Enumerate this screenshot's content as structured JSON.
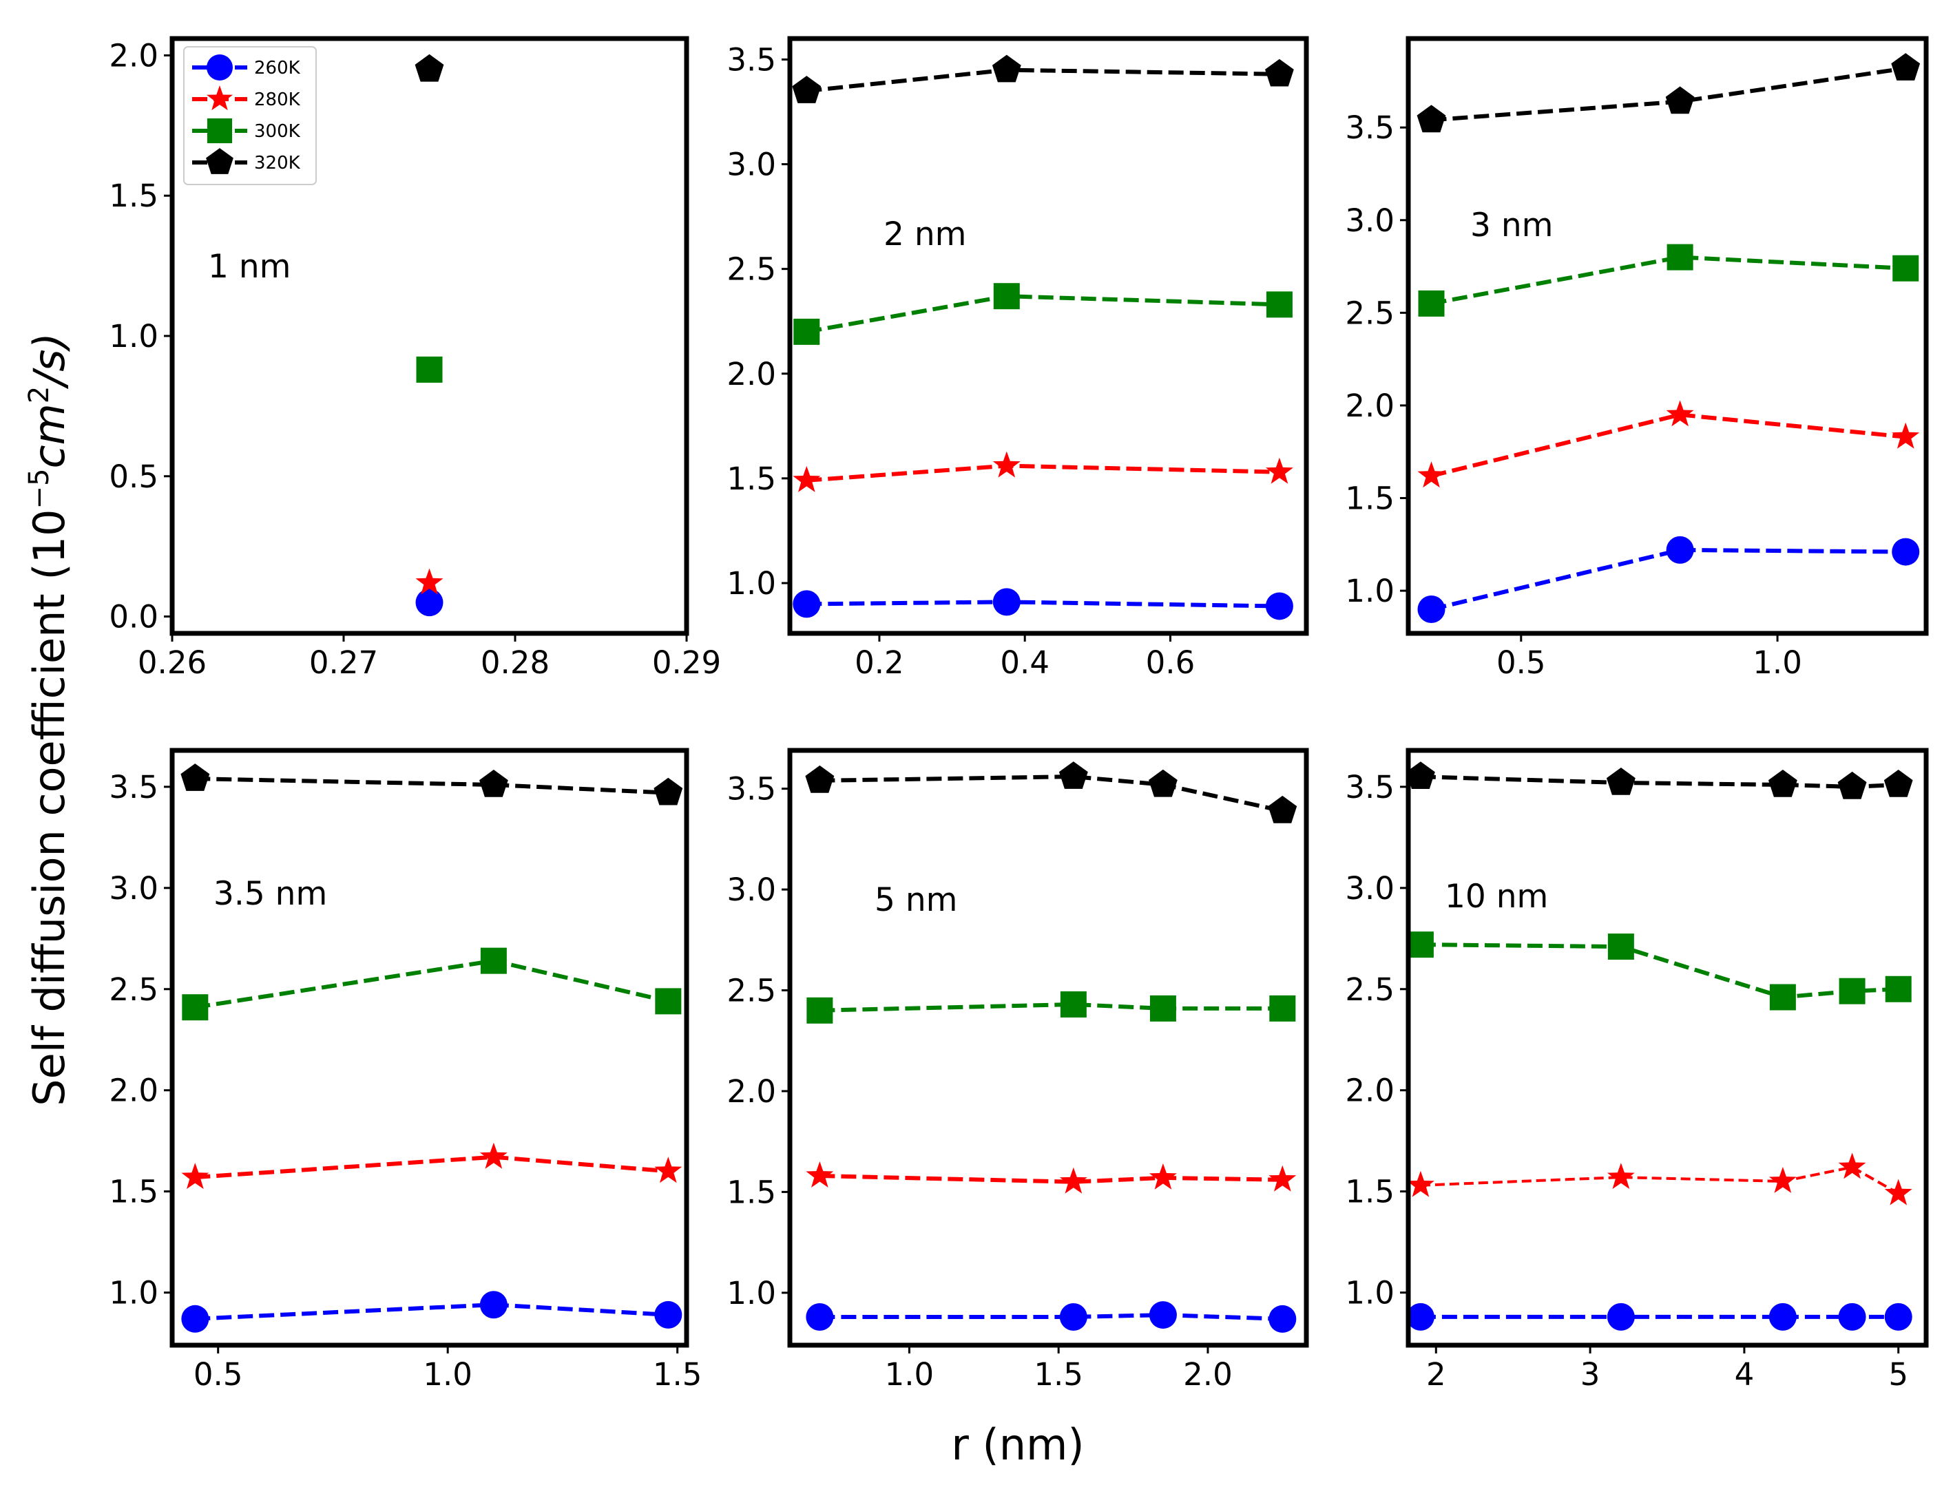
{
  "chart_data": {
    "type": "line",
    "ylabel": "Self diffusion coefficient (10",
    "ylabel_exponent": "−5",
    "ylabel_unit_base": "cm",
    "ylabel_unit_exponent": "2",
    "ylabel_unit_tail": "/s)",
    "xlabel": "r (nm)",
    "series_styles": [
      {
        "name": "260K",
        "color": "#0000ff",
        "marker": "circle"
      },
      {
        "name": "280K",
        "color": "#ff0000",
        "marker": "star"
      },
      {
        "name": "300K",
        "color": "#008000",
        "marker": "square"
      },
      {
        "name": "320K",
        "color": "#000000",
        "marker": "pentagon"
      }
    ],
    "panels": [
      {
        "label": "1 nm",
        "xlim": [
          0.26,
          0.29
        ],
        "ylim": [
          -0.06,
          2.06
        ],
        "xticks": [
          0.26,
          0.27,
          0.28,
          0.29
        ],
        "xtick_labels": [
          "0.26",
          "0.27",
          "0.28",
          "0.29"
        ],
        "yticks": [
          0.0,
          0.5,
          1.0,
          1.5,
          2.0
        ],
        "ytick_labels": [
          "0.0",
          "0.5",
          "1.0",
          "1.5",
          "2.0"
        ],
        "legend": "top-left",
        "series": [
          {
            "name": "260K",
            "x": [
              0.275
            ],
            "y": [
              0.05
            ]
          },
          {
            "name": "280K",
            "x": [
              0.275
            ],
            "y": [
              0.12
            ]
          },
          {
            "name": "300K",
            "x": [
              0.275
            ],
            "y": [
              0.88
            ]
          },
          {
            "name": "320K",
            "x": [
              0.275
            ],
            "y": [
              1.95
            ]
          }
        ]
      },
      {
        "label": "2 nm",
        "xlim": [
          0.077,
          0.787
        ],
        "ylim": [
          0.76,
          3.6
        ],
        "xticks": [
          0.2,
          0.4,
          0.6
        ],
        "xtick_labels": [
          "0.2",
          "0.4",
          "0.6"
        ],
        "yticks": [
          1.0,
          1.5,
          2.0,
          2.5,
          3.0,
          3.5
        ],
        "ytick_labels": [
          "1.0",
          "1.5",
          "2.0",
          "2.5",
          "3.0",
          "3.5"
        ],
        "series": [
          {
            "name": "260K",
            "x": [
              0.1,
              0.375,
              0.75
            ],
            "y": [
              0.9,
              0.91,
              0.89
            ]
          },
          {
            "name": "280K",
            "x": [
              0.1,
              0.375,
              0.75
            ],
            "y": [
              1.49,
              1.56,
              1.53
            ]
          },
          {
            "name": "300K",
            "x": [
              0.1,
              0.375,
              0.75
            ],
            "y": [
              2.2,
              2.37,
              2.33
            ]
          },
          {
            "name": "320K",
            "x": [
              0.1,
              0.375,
              0.75
            ],
            "y": [
              3.35,
              3.45,
              3.43
            ]
          }
        ]
      },
      {
        "label": "3 nm",
        "xlim": [
          0.28,
          1.29
        ],
        "ylim": [
          0.77,
          3.98
        ],
        "xticks": [
          0.5,
          1.0
        ],
        "xtick_labels": [
          "0.5",
          "1.0"
        ],
        "yticks": [
          1.0,
          1.5,
          2.0,
          2.5,
          3.0,
          3.5
        ],
        "ytick_labels": [
          "1.0",
          "1.5",
          "2.0",
          "2.5",
          "3.0",
          "3.5"
        ],
        "series": [
          {
            "name": "260K",
            "x": [
              0.325,
              0.81,
              1.25
            ],
            "y": [
              0.9,
              1.22,
              1.21
            ]
          },
          {
            "name": "280K",
            "x": [
              0.325,
              0.81,
              1.25
            ],
            "y": [
              1.62,
              1.95,
              1.83
            ]
          },
          {
            "name": "300K",
            "x": [
              0.325,
              0.81,
              1.25
            ],
            "y": [
              2.55,
              2.8,
              2.74
            ]
          },
          {
            "name": "320K",
            "x": [
              0.325,
              0.81,
              1.25
            ],
            "y": [
              3.54,
              3.64,
              3.82
            ]
          }
        ]
      },
      {
        "label": "3.5 nm",
        "xlim": [
          0.4,
          1.52
        ],
        "ylim": [
          0.74,
          3.68
        ],
        "xticks": [
          0.5,
          1.0,
          1.5
        ],
        "xtick_labels": [
          "0.5",
          "1.0",
          "1.5"
        ],
        "yticks": [
          1.0,
          1.5,
          2.0,
          2.5,
          3.0,
          3.5
        ],
        "ytick_labels": [
          "1.0",
          "1.5",
          "2.0",
          "2.5",
          "3.0",
          "3.5"
        ],
        "series": [
          {
            "name": "260K",
            "x": [
              0.45,
              1.1,
              1.48
            ],
            "y": [
              0.87,
              0.94,
              0.89
            ]
          },
          {
            "name": "280K",
            "x": [
              0.45,
              1.1,
              1.48
            ],
            "y": [
              1.57,
              1.67,
              1.6
            ]
          },
          {
            "name": "300K",
            "x": [
              0.45,
              1.1,
              1.48
            ],
            "y": [
              2.41,
              2.64,
              2.44
            ]
          },
          {
            "name": "320K",
            "x": [
              0.45,
              1.1,
              1.48
            ],
            "y": [
              3.54,
              3.51,
              3.47
            ]
          }
        ]
      },
      {
        "label": "5 nm",
        "xlim": [
          0.6,
          2.33
        ],
        "ylim": [
          0.74,
          3.69
        ],
        "xticks": [
          1.0,
          1.5,
          2.0
        ],
        "xtick_labels": [
          "1.0",
          "1.5",
          "2.0"
        ],
        "yticks": [
          1.0,
          1.5,
          2.0,
          2.5,
          3.0,
          3.5
        ],
        "ytick_labels": [
          "1.0",
          "1.5",
          "2.0",
          "2.5",
          "3.0",
          "3.5"
        ],
        "series": [
          {
            "name": "260K",
            "x": [
              0.7,
              1.55,
              1.85,
              2.25
            ],
            "y": [
              0.88,
              0.88,
              0.89,
              0.87
            ]
          },
          {
            "name": "280K",
            "x": [
              0.7,
              1.55,
              1.85,
              2.25
            ],
            "y": [
              1.58,
              1.55,
              1.57,
              1.56
            ]
          },
          {
            "name": "300K",
            "x": [
              0.7,
              1.55,
              1.85,
              2.25
            ],
            "y": [
              2.4,
              2.43,
              2.41,
              2.41
            ]
          },
          {
            "name": "320K",
            "x": [
              0.7,
              1.55,
              1.85,
              2.25
            ],
            "y": [
              3.54,
              3.56,
              3.52,
              3.39
            ]
          }
        ]
      },
      {
        "label": "10 nm",
        "xlim": [
          1.82,
          5.18
        ],
        "ylim": [
          0.74,
          3.68
        ],
        "xticks": [
          2,
          3,
          4,
          5
        ],
        "xtick_labels": [
          "2",
          "3",
          "4",
          "5"
        ],
        "yticks": [
          1.0,
          1.5,
          2.0,
          2.5,
          3.0,
          3.5
        ],
        "ytick_labels": [
          "1.0",
          "1.5",
          "2.0",
          "2.5",
          "3.0",
          "3.5"
        ],
        "thin_series": [
          "280K"
        ],
        "series": [
          {
            "name": "260K",
            "x": [
              1.9,
              3.2,
              4.25,
              4.7,
              5.0
            ],
            "y": [
              0.88,
              0.88,
              0.88,
              0.88,
              0.88
            ]
          },
          {
            "name": "280K",
            "x": [
              1.9,
              3.2,
              4.25,
              4.7,
              5.0
            ],
            "y": [
              1.53,
              1.57,
              1.55,
              1.62,
              1.49
            ]
          },
          {
            "name": "300K",
            "x": [
              1.9,
              3.2,
              4.25,
              4.7,
              5.0
            ],
            "y": [
              2.72,
              2.71,
              2.46,
              2.49,
              2.5
            ]
          },
          {
            "name": "320K",
            "x": [
              1.9,
              3.2,
              4.25,
              4.7,
              5.0
            ],
            "y": [
              3.55,
              3.52,
              3.51,
              3.5,
              3.51
            ]
          }
        ]
      }
    ]
  }
}
